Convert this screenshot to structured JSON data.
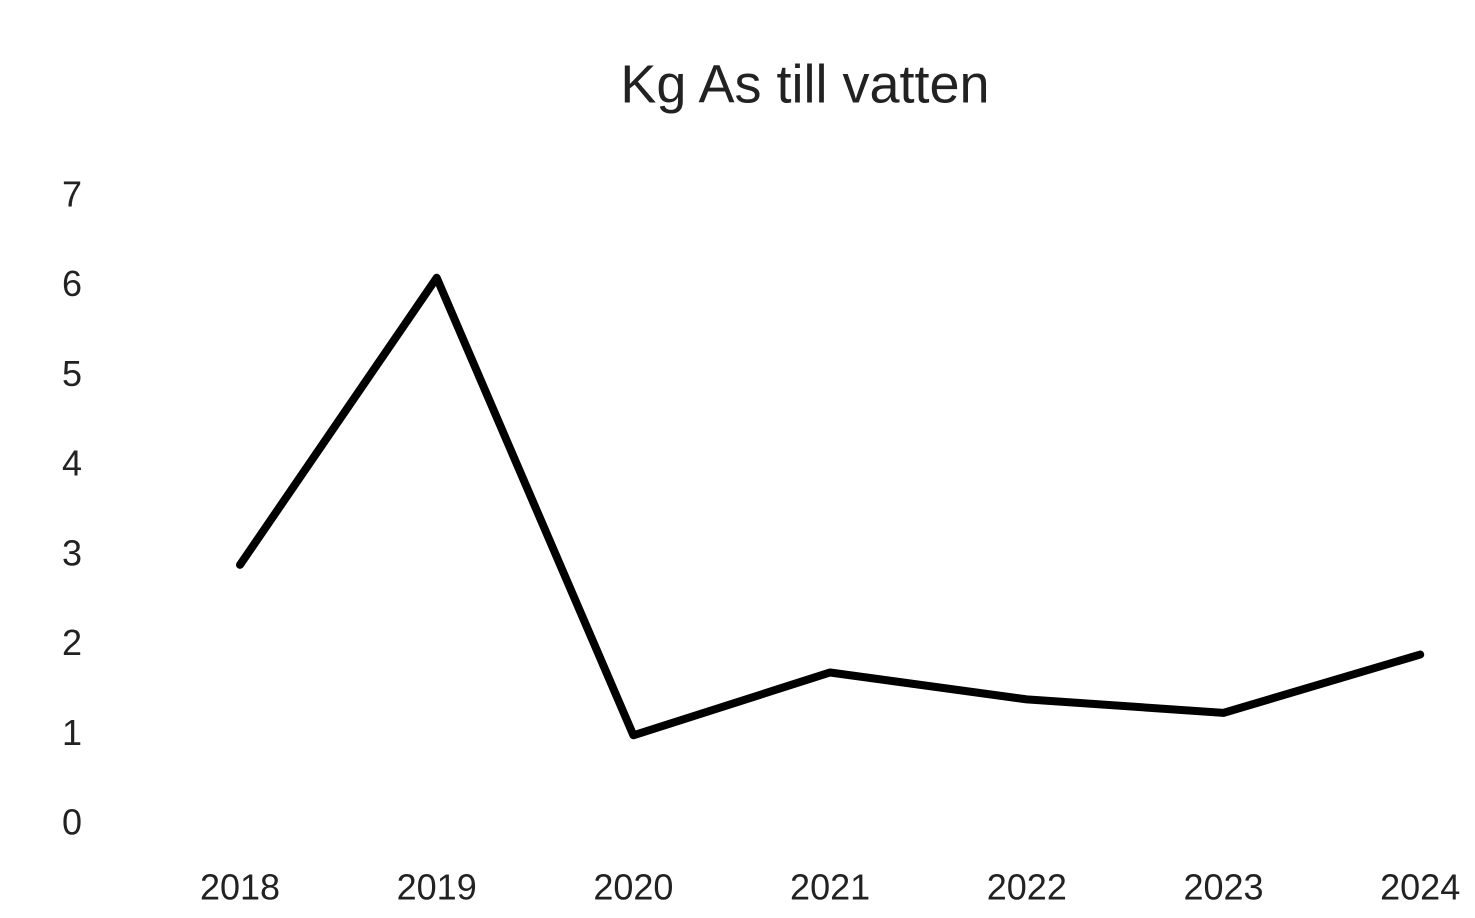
{
  "chart_data": {
    "type": "line",
    "title": "Kg As till vatten",
    "categories": [
      "2018",
      "2019",
      "2020",
      "2021",
      "2022",
      "2023",
      "2024"
    ],
    "series": [
      {
        "name": "Kg As till vatten",
        "color": "#000000",
        "values": [
          2.9,
          6.1,
          1.0,
          1.7,
          1.4,
          1.25,
          1.9
        ]
      }
    ],
    "ylim": [
      0,
      7
    ],
    "yticks": [
      0,
      1,
      2,
      3,
      4,
      5,
      6,
      7
    ],
    "grid": false,
    "legend": false
  }
}
